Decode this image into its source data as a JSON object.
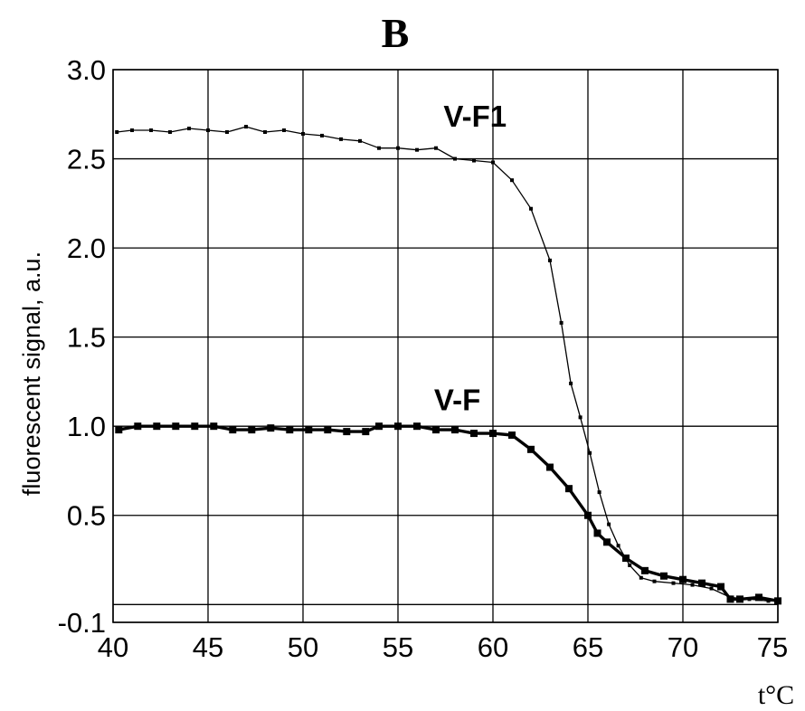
{
  "chart_data": {
    "type": "line",
    "title": "B",
    "xlabel": "t°C",
    "ylabel": "fluorescent signal, a.u.",
    "xlim": [
      40,
      75
    ],
    "ylim": [
      -0.1,
      3.0
    ],
    "x_ticks": [
      "40",
      "45",
      "50",
      "55",
      "60",
      "65",
      "70",
      "75"
    ],
    "x_tick_values": [
      40,
      45,
      50,
      55,
      60,
      65,
      70,
      75
    ],
    "y_ticks": [
      "-0.1",
      "0.5",
      "1.0",
      "1.5",
      "2.0",
      "2.5",
      "3.0"
    ],
    "y_tick_values": [
      -0.1,
      0.5,
      1.0,
      1.5,
      2.0,
      2.5,
      3.0
    ],
    "extra_hlines": [
      0.0
    ],
    "grid": true,
    "series": [
      {
        "name": "V-F1",
        "style": "thin",
        "label_x": 57.4,
        "label_y": 2.68,
        "points": [
          [
            40.2,
            2.65
          ],
          [
            41.0,
            2.66
          ],
          [
            42.0,
            2.66
          ],
          [
            43.0,
            2.65
          ],
          [
            44.0,
            2.67
          ],
          [
            45.0,
            2.66
          ],
          [
            46.0,
            2.65
          ],
          [
            47.0,
            2.68
          ],
          [
            48.0,
            2.65
          ],
          [
            49.0,
            2.66
          ],
          [
            50.0,
            2.64
          ],
          [
            51.0,
            2.63
          ],
          [
            52.0,
            2.61
          ],
          [
            53.0,
            2.6
          ],
          [
            54.0,
            2.56
          ],
          [
            55.0,
            2.56
          ],
          [
            56.0,
            2.55
          ],
          [
            57.0,
            2.56
          ],
          [
            58.0,
            2.5
          ],
          [
            59.0,
            2.49
          ],
          [
            60.0,
            2.48
          ],
          [
            61.0,
            2.38
          ],
          [
            62.0,
            2.22
          ],
          [
            63.0,
            1.93
          ],
          [
            63.6,
            1.58
          ],
          [
            64.1,
            1.24
          ],
          [
            64.6,
            1.05
          ],
          [
            65.1,
            0.85
          ],
          [
            65.6,
            0.63
          ],
          [
            66.1,
            0.45
          ],
          [
            66.6,
            0.33
          ],
          [
            67.2,
            0.22
          ],
          [
            67.8,
            0.15
          ],
          [
            68.5,
            0.13
          ],
          [
            69.5,
            0.12
          ],
          [
            70.5,
            0.11
          ],
          [
            71.5,
            0.09
          ],
          [
            72.5,
            0.04
          ],
          [
            73.5,
            0.03
          ],
          [
            74.5,
            0.02
          ],
          [
            75.0,
            0.02
          ]
        ]
      },
      {
        "name": "V-F",
        "style": "thick",
        "label_x": 56.9,
        "label_y": 1.09,
        "points": [
          [
            40.3,
            0.98
          ],
          [
            41.3,
            1.0
          ],
          [
            42.3,
            1.0
          ],
          [
            43.3,
            1.0
          ],
          [
            44.3,
            1.0
          ],
          [
            45.3,
            1.0
          ],
          [
            46.3,
            0.98
          ],
          [
            47.3,
            0.98
          ],
          [
            48.3,
            0.99
          ],
          [
            49.3,
            0.98
          ],
          [
            50.3,
            0.98
          ],
          [
            51.3,
            0.98
          ],
          [
            52.3,
            0.97
          ],
          [
            53.3,
            0.97
          ],
          [
            54.0,
            1.0
          ],
          [
            55.0,
            1.0
          ],
          [
            56.0,
            1.0
          ],
          [
            57.0,
            0.98
          ],
          [
            58.0,
            0.98
          ],
          [
            59.0,
            0.96
          ],
          [
            60.0,
            0.96
          ],
          [
            61.0,
            0.95
          ],
          [
            62.0,
            0.87
          ],
          [
            63.0,
            0.77
          ],
          [
            64.0,
            0.65
          ],
          [
            65.0,
            0.5
          ],
          [
            65.5,
            0.4
          ],
          [
            66.0,
            0.35
          ],
          [
            67.0,
            0.26
          ],
          [
            68.0,
            0.19
          ],
          [
            69.0,
            0.16
          ],
          [
            70.0,
            0.14
          ],
          [
            71.0,
            0.12
          ],
          [
            72.0,
            0.1
          ],
          [
            72.5,
            0.03
          ],
          [
            73.0,
            0.03
          ],
          [
            74.0,
            0.04
          ],
          [
            75.0,
            0.02
          ]
        ]
      }
    ]
  }
}
